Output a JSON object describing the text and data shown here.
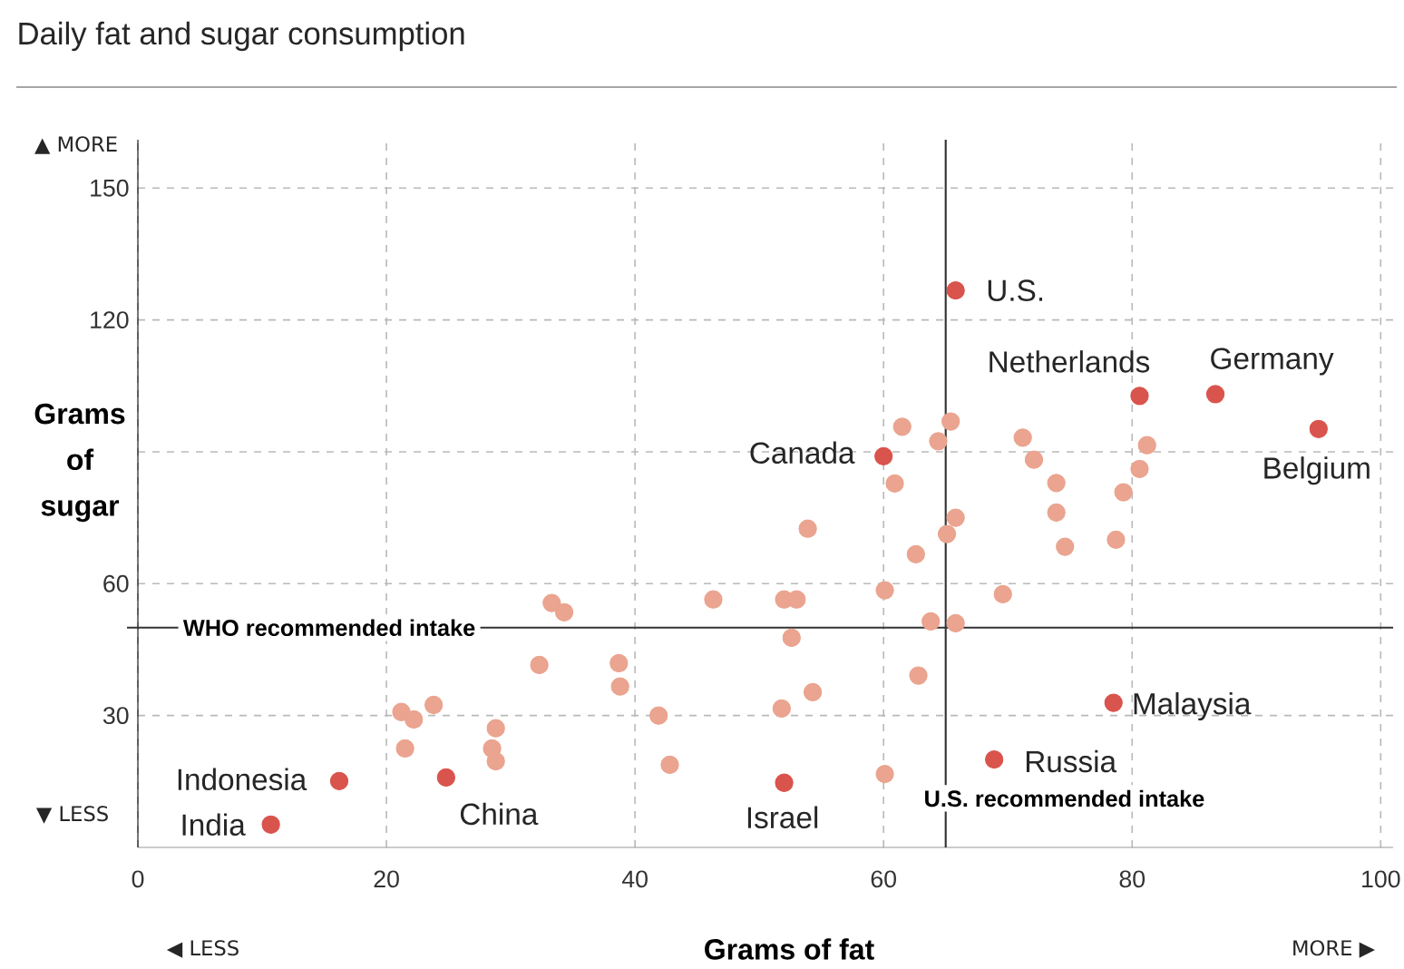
{
  "chart_data": {
    "type": "scatter",
    "title": "Daily fat and sugar consumption",
    "xlabel": "Grams of fat",
    "ylabel": "Grams of sugar",
    "xlim": [
      0,
      101
    ],
    "ylim": [
      0,
      161
    ],
    "xticks": [
      {
        "value": 0,
        "label": "0"
      },
      20,
      40,
      60,
      80,
      100
    ],
    "yticks": [
      30,
      60,
      {
        "value": 90,
        "label": null
      },
      120,
      150
    ],
    "grid": true,
    "marker": "circle",
    "series": [
      {
        "color": "#eaa48f",
        "x": [
          61.5,
          65.4,
          64.4,
          60.9,
          53.9,
          65.8,
          65.1,
          62.6,
          71.2,
          72.1,
          73.9,
          73.9,
          74.6,
          78.7,
          79.3,
          80.6,
          81.2,
          60.1,
          69.6,
          63.8,
          65.8,
          52.0,
          53.0,
          52.6,
          54.3,
          51.8,
          62.8,
          60.1,
          46.3,
          33.3,
          34.3,
          32.3,
          38.7,
          38.8,
          41.9,
          42.8,
          21.2,
          22.2,
          23.8,
          21.5,
          28.8,
          28.5,
          28.8
        ],
        "values": [
          95.7,
          96.9,
          92.4,
          82.8,
          72.5,
          75.0,
          71.3,
          66.7,
          93.2,
          88.2,
          82.9,
          76.2,
          68.4,
          70.0,
          80.8,
          86.1,
          91.5,
          58.5,
          57.6,
          51.4,
          51.0,
          56.4,
          56.4,
          47.7,
          35.3,
          31.6,
          39.1,
          16.7,
          56.4,
          55.6,
          53.5,
          41.5,
          41.9,
          36.6,
          30.0,
          18.8,
          30.8,
          29.1,
          32.4,
          22.5,
          27.1,
          22.5,
          19.6
        ]
      },
      {
        "color": "#d9544d",
        "x": [
          65.8,
          80.6,
          86.7,
          95.0,
          60.0,
          78.5,
          68.9,
          52.0,
          24.8,
          16.2,
          10.7
        ],
        "values": [
          126.7,
          102.7,
          103.1,
          95.2,
          89.0,
          32.9,
          20.0,
          14.7,
          15.9,
          15.1,
          5.2
        ]
      }
    ],
    "ref_lines": [
      {
        "axis": "y",
        "value": 50,
        "label": "WHO recommended intake",
        "color": "#333333"
      },
      {
        "axis": "x",
        "value": 65,
        "label": "U.S. recommended intake",
        "color": "#333333"
      }
    ],
    "annotations": [
      "▲ MORE",
      "▼ LESS",
      "◀ LESS",
      "MORE ▶",
      {
        "text": "U.S.",
        "x": 65.8,
        "y": 126.7
      },
      {
        "text": "Netherlands",
        "x": 80.6,
        "y": 102.7
      },
      {
        "text": "Germany",
        "x": 86.7,
        "y": 103.1
      },
      {
        "text": "Belgium",
        "x": 95.0,
        "y": 95.2
      },
      {
        "text": "Canada",
        "x": 60.0,
        "y": 89.0
      },
      {
        "text": "Malaysia",
        "x": 78.5,
        "y": 32.9
      },
      {
        "text": "Russia",
        "x": 68.9,
        "y": 20.0
      },
      {
        "text": "Israel",
        "x": 52.0,
        "y": 14.7
      },
      {
        "text": "China",
        "x": 24.8,
        "y": 15.9
      },
      {
        "text": "Indonesia",
        "x": 16.2,
        "y": 15.1
      },
      {
        "text": "India",
        "x": 10.7,
        "y": 5.2
      }
    ]
  }
}
